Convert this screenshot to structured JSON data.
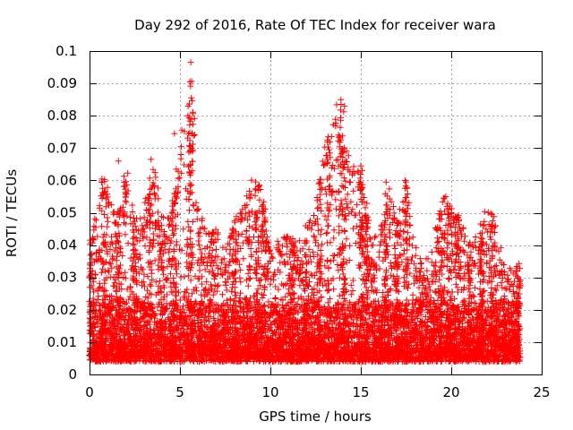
{
  "chart_data": {
    "type": "scatter",
    "title": "Day 292 of 2016, Rate Of TEC Index for receiver wara",
    "xlabel": "GPS time / hours",
    "ylabel": "ROTI / TECUs",
    "xlim": [
      0,
      25
    ],
    "ylim": [
      0,
      0.1
    ],
    "xticks": [
      0,
      5,
      10,
      15,
      20,
      25
    ],
    "xtick_labels": [
      "0",
      "5",
      "10",
      "15",
      "20",
      "25"
    ],
    "yticks": [
      0,
      0.01,
      0.02,
      0.03,
      0.04,
      0.05,
      0.06,
      0.07,
      0.08,
      0.09,
      0.1
    ],
    "ytick_labels": [
      "0",
      "0.01",
      "0.02",
      "0.03",
      "0.04",
      "0.05",
      "0.06",
      "0.07",
      "0.08",
      "0.09",
      "0.1"
    ],
    "grid": true,
    "marker": "plus",
    "marker_color": "#ff0000",
    "grid_color": "#a0a0a0",
    "data_x_range": [
      0,
      23.8
    ],
    "envelope": {
      "x": [
        0,
        0.5,
        0.8,
        1.0,
        1.5,
        2.0,
        2.5,
        3.0,
        3.5,
        4.0,
        4.5,
        5.0,
        5.5,
        5.7,
        6.0,
        6.5,
        7.0,
        7.5,
        8.0,
        8.5,
        9.0,
        9.5,
        10.0,
        10.5,
        11.0,
        11.5,
        12.0,
        12.5,
        13.0,
        13.3,
        13.7,
        14.0,
        14.5,
        15.0,
        15.5,
        16.0,
        16.5,
        17.0,
        17.5,
        18.0,
        18.5,
        19.0,
        19.5,
        20.0,
        20.5,
        21.0,
        21.5,
        22.0,
        22.5,
        23.0,
        23.8
      ],
      "upper": [
        0.043,
        0.052,
        0.062,
        0.058,
        0.048,
        0.066,
        0.05,
        0.052,
        0.066,
        0.052,
        0.048,
        0.074,
        0.083,
        0.096,
        0.052,
        0.044,
        0.046,
        0.038,
        0.048,
        0.052,
        0.061,
        0.058,
        0.038,
        0.042,
        0.044,
        0.04,
        0.046,
        0.05,
        0.074,
        0.072,
        0.085,
        0.084,
        0.065,
        0.064,
        0.046,
        0.042,
        0.06,
        0.048,
        0.06,
        0.04,
        0.036,
        0.042,
        0.057,
        0.052,
        0.048,
        0.042,
        0.044,
        0.055,
        0.047,
        0.032,
        0.035
      ],
      "typical_floor": 0.004,
      "typical_median": 0.012
    },
    "highlighted_peaks": [
      {
        "x": 5.6,
        "y": 0.0965
      },
      {
        "x": 5.55,
        "y": 0.0905
      },
      {
        "x": 5.45,
        "y": 0.083
      },
      {
        "x": 4.7,
        "y": 0.0745
      },
      {
        "x": 13.9,
        "y": 0.085
      },
      {
        "x": 14.1,
        "y": 0.083
      },
      {
        "x": 13.2,
        "y": 0.0735
      },
      {
        "x": 15.0,
        "y": 0.0645
      },
      {
        "x": 3.4,
        "y": 0.0665
      },
      {
        "x": 1.6,
        "y": 0.066
      },
      {
        "x": 17.5,
        "y": 0.0595
      },
      {
        "x": 16.4,
        "y": 0.0595
      }
    ]
  }
}
